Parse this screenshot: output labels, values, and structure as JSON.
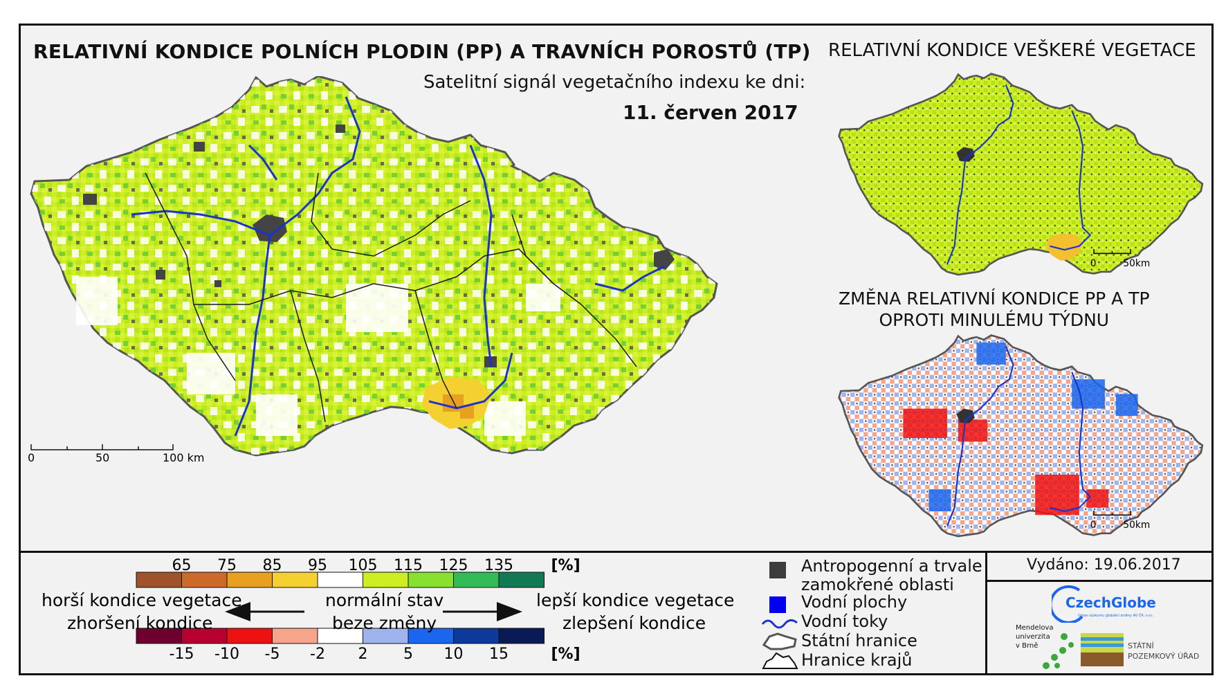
{
  "title_main": "RELATIVNÍ KONDICE POLNÍCH PLODIN (PP) A TRAVNÍCH POROSTŮ (TP)",
  "subtitle": "Satelitní signál vegetačního indexu ke dni:",
  "date": "11. červen 2017",
  "title_vegetation": "RELATIVNÍ KONDICE VEŠKERÉ VEGETACE",
  "title_change_line1": "ZMĚNA RELATIVNÍ KONDICE PP A TP",
  "title_change_line2": "OPROTI MINULÉMU TÝDNU",
  "main_scale": {
    "l0": "0",
    "l1": "50",
    "l2": "100 km"
  },
  "small_scale": {
    "l0": "0",
    "l1": "50km"
  },
  "legend_top": {
    "labels": [
      "65",
      "75",
      "85",
      "95",
      "105",
      "115",
      "125",
      "135"
    ],
    "unit": "[%]",
    "colors": [
      "#a0522d",
      "#cd6a2a",
      "#e8a020",
      "#f5d031",
      "#ffffff",
      "#ccee22",
      "#88e030",
      "#33bb55",
      "#117a55"
    ]
  },
  "legend_bottom": {
    "labels": [
      "-15",
      "-10",
      "-5",
      "-2",
      "2",
      "5",
      "10",
      "15"
    ],
    "unit": "[%]",
    "colors": [
      "#6e0030",
      "#b80030",
      "#ee1111",
      "#f7a58a",
      "#ffffff",
      "#9fb4ee",
      "#1a66ee",
      "#0d3a9a",
      "#0a1a55"
    ]
  },
  "legend_text": {
    "worse_1": "horší kondice vegetace",
    "worse_2": "zhoršení kondice",
    "normal_1": "normální stav",
    "normal_2": "beze změny",
    "better_1": "lepší kondice vegetace",
    "better_2": "zlepšení kondice"
  },
  "legend_items": [
    {
      "label": "Antropogenní a trvale",
      "label2": "zamokřené oblasti",
      "icon": "square-icon",
      "color": "#3c3c3c"
    },
    {
      "label": "Vodní plochy",
      "icon": "square-icon",
      "color": "#0000ee"
    },
    {
      "label": "Vodní toky",
      "icon": "river-line-icon",
      "color": "#1a33cc"
    },
    {
      "label": "Státní hranice",
      "icon": "state-border-icon",
      "color": "#555555"
    },
    {
      "label": "Hranice krajů",
      "icon": "region-border-icon",
      "color": "#111111"
    }
  ],
  "issued": "Vydáno: 19.06.2017",
  "logos": {
    "czechglobe": "CzechGlobe",
    "czechglobe_sub": "Ústav výzkumu globální změny AV ČR, v.v.i.",
    "mendel_1": "Mendelova",
    "mendel_2": "univerzita",
    "mendel_3": "v Brně",
    "spu_1": "STÁTNÍ",
    "spu_2": "POZEMKOVÝ ÚŘAD"
  }
}
